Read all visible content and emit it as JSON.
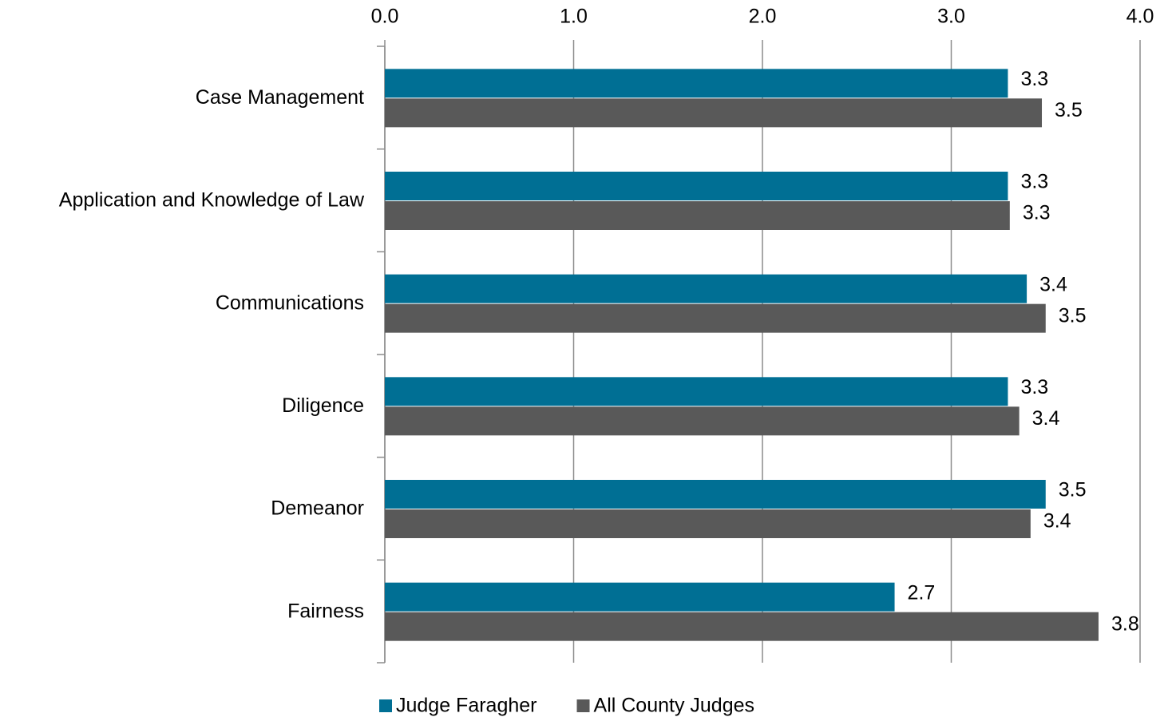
{
  "chart_data": {
    "type": "hbar",
    "categories": [
      "Case Management",
      "Application and Knowledge of Law",
      "Communications",
      "Diligence",
      "Demeanor",
      "Fairness"
    ],
    "series": [
      {
        "name": "Judge Faragher",
        "color": "#006f94",
        "values": [
          3.3,
          3.3,
          3.4,
          3.3,
          3.5,
          2.7
        ],
        "value_labels": [
          "3.3",
          "3.3",
          "3.4",
          "3.3",
          "3.5",
          "2.7"
        ]
      },
      {
        "name": "All County Judges",
        "color": "#595959",
        "values": [
          3.48,
          3.31,
          3.5,
          3.36,
          3.42,
          3.78
        ],
        "value_labels": [
          "3.5",
          "3.3",
          "3.5",
          "3.4",
          "3.4",
          "3.8"
        ]
      }
    ],
    "xlim": [
      0,
      4
    ],
    "xticks": [
      {
        "value": 0,
        "label": "0.0"
      },
      {
        "value": 1,
        "label": "1.0"
      },
      {
        "value": 2,
        "label": "2.0"
      },
      {
        "value": 3,
        "label": "3.0"
      },
      {
        "value": 4,
        "label": "4.0"
      }
    ],
    "grid": true,
    "legend": "bottom"
  }
}
